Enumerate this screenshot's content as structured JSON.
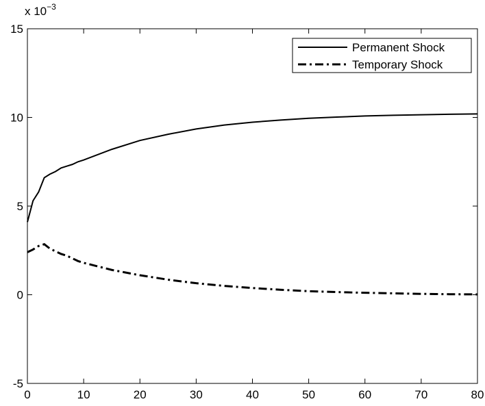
{
  "chart_data": {
    "type": "line",
    "y_scale_label": {
      "base": "x 10",
      "exponent": "−3"
    },
    "x": [
      0,
      1,
      2,
      3,
      4,
      5,
      6,
      7,
      8,
      9,
      10,
      15,
      20,
      25,
      30,
      35,
      40,
      45,
      50,
      55,
      60,
      65,
      70,
      75,
      80
    ],
    "series": [
      {
        "name": "Permanent Shock",
        "color": "#000000",
        "linestyle": "solid",
        "values": [
          4.1,
          5.3,
          5.8,
          6.6,
          6.8,
          6.95,
          7.15,
          7.25,
          7.35,
          7.5,
          7.6,
          8.2,
          8.7,
          9.05,
          9.35,
          9.57,
          9.73,
          9.85,
          9.95,
          10.02,
          10.08,
          10.12,
          10.15,
          10.18,
          10.2
        ]
      },
      {
        "name": "Temporary Shock",
        "color": "#000000",
        "linestyle": "dashdot",
        "values": [
          2.4,
          2.55,
          2.75,
          2.85,
          2.6,
          2.45,
          2.3,
          2.2,
          2.05,
          1.9,
          1.8,
          1.4,
          1.1,
          0.85,
          0.65,
          0.5,
          0.38,
          0.28,
          0.2,
          0.15,
          0.11,
          0.08,
          0.05,
          0.03,
          0.02
        ]
      }
    ],
    "xlim": [
      0,
      80
    ],
    "xticks": [
      0,
      10,
      20,
      30,
      40,
      50,
      60,
      70,
      80
    ],
    "ylim": [
      -5,
      15
    ],
    "yticks": [
      -5,
      0,
      5,
      10,
      15
    ],
    "legend": "northeast",
    "grid": false
  }
}
